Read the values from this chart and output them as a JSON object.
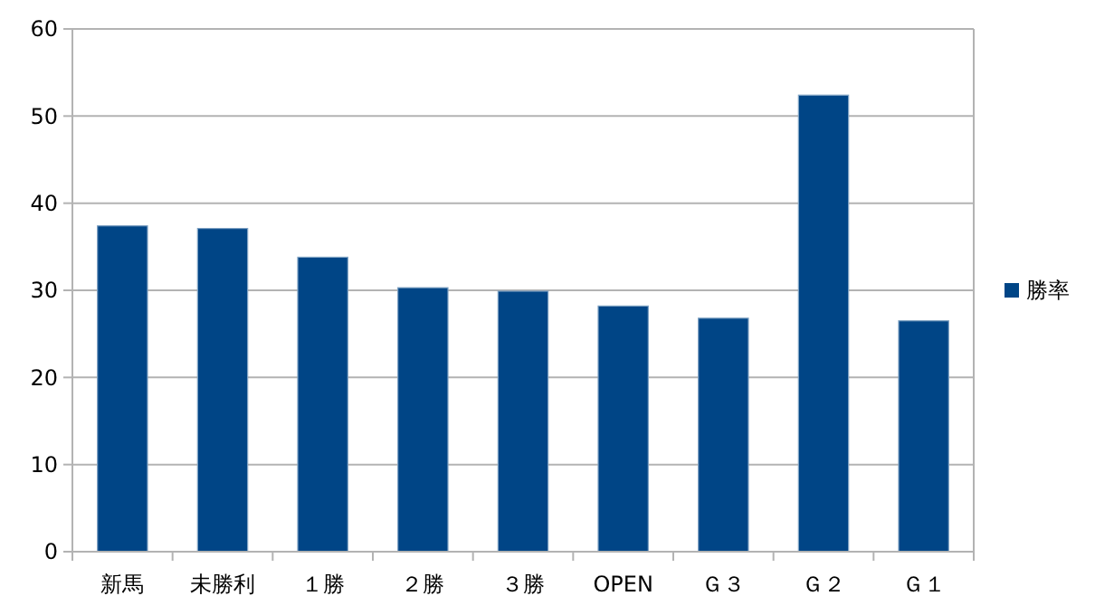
{
  "chart_data": {
    "type": "bar",
    "categories": [
      "新馬",
      "未勝利",
      "１勝",
      "２勝",
      "３勝",
      "OPEN",
      "Ｇ３",
      "Ｇ２",
      "Ｇ１"
    ],
    "series": [
      {
        "name": "勝率",
        "color": "#004586",
        "values": [
          37.4,
          37.1,
          33.8,
          30.3,
          29.9,
          28.2,
          26.8,
          52.4,
          26.5
        ]
      }
    ],
    "ylim": [
      0,
      60
    ],
    "yticks": [
      0,
      10,
      20,
      30,
      40,
      50,
      60
    ],
    "grid": "y",
    "legend": "right"
  }
}
